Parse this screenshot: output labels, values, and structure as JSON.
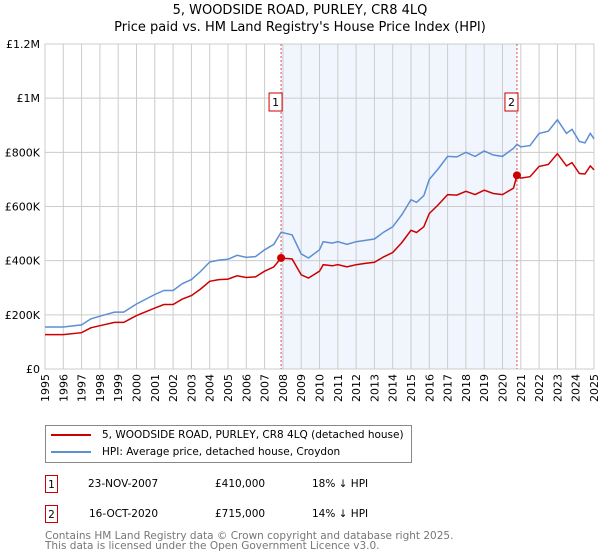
{
  "chart_data": {
    "type": "line",
    "title": "5, WOODSIDE ROAD, PURLEY, CR8 4LQ",
    "subtitle": "Price paid vs. HM Land Registry's House Price Index (HPI)",
    "xlabel": "",
    "ylabel": "",
    "xlim": [
      1995,
      2025
    ],
    "ylim": [
      0,
      1200000
    ],
    "yticks": [
      {
        "v": 0,
        "label": "£0"
      },
      {
        "v": 200000,
        "label": "£200K"
      },
      {
        "v": 400000,
        "label": "£400K"
      },
      {
        "v": 600000,
        "label": "£600K"
      },
      {
        "v": 800000,
        "label": "£800K"
      },
      {
        "v": 1000000,
        "label": "£1M"
      },
      {
        "v": 1200000,
        "label": "£1.2M"
      }
    ],
    "xticks": [
      "1995",
      "1996",
      "1997",
      "1998",
      "1999",
      "2000",
      "2001",
      "2002",
      "2003",
      "2004",
      "2005",
      "2006",
      "2007",
      "2008",
      "2009",
      "2010",
      "2011",
      "2012",
      "2013",
      "2014",
      "2015",
      "2016",
      "2017",
      "2018",
      "2019",
      "2020",
      "2021",
      "2022",
      "2023",
      "2024",
      "2025"
    ],
    "grid": true,
    "shaded_range": [
      2007.9,
      2020.79
    ],
    "series": [
      {
        "name": "5, WOODSIDE ROAD, PURLEY, CR8 4LQ (detached house)",
        "color": "#cc0000",
        "x": [
          1995,
          1996,
          1997,
          1997.5,
          1998,
          1998.8,
          1999.3,
          2000,
          2001,
          2001.5,
          2002,
          2002.5,
          2003,
          2003.5,
          2004,
          2004.5,
          2005,
          2005.5,
          2006,
          2006.5,
          2007,
          2007.5,
          2007.9,
          2008.5,
          2009,
          2009.4,
          2010,
          2010.2,
          2010.7,
          2011,
          2011.5,
          2012,
          2012.5,
          2013,
          2013.5,
          2014,
          2014.5,
          2015,
          2015.3,
          2015.7,
          2016,
          2016.5,
          2017,
          2017.5,
          2018,
          2018.5,
          2019,
          2019.5,
          2020,
          2020.6,
          2020.79,
          2021,
          2021.5,
          2022,
          2022.5,
          2023,
          2023.5,
          2023.8,
          2024.2,
          2024.5,
          2024.8,
          2025
        ],
        "y": [
          127000,
          127000,
          134000,
          152000,
          160000,
          172000,
          172000,
          197000,
          225000,
          238000,
          238000,
          258000,
          271000,
          295000,
          324000,
          330000,
          332000,
          344000,
          338000,
          340000,
          361000,
          377000,
          410000,
          406000,
          348000,
          336000,
          361000,
          385000,
          381000,
          385000,
          377000,
          385000,
          390000,
          394000,
          414000,
          430000,
          467000,
          512000,
          504000,
          525000,
          574000,
          607000,
          644000,
          642000,
          656000,
          644000,
          660000,
          648000,
          644000,
          668000,
          715000,
          705000,
          710000,
          748000,
          755000,
          795000,
          750000,
          762000,
          722000,
          720000,
          750000,
          735000
        ]
      },
      {
        "name": "HPI: Average price, detached house, Croydon",
        "color": "#5b8fd4",
        "x": [
          1995,
          1996,
          1997,
          1997.5,
          1998,
          1998.8,
          1999.3,
          2000,
          2001,
          2001.5,
          2002,
          2002.5,
          2003,
          2003.5,
          2004,
          2004.5,
          2005,
          2005.5,
          2006,
          2006.5,
          2007,
          2007.5,
          2007.9,
          2008.5,
          2009,
          2009.4,
          2010,
          2010.2,
          2010.7,
          2011,
          2011.5,
          2012,
          2012.5,
          2013,
          2013.5,
          2014,
          2014.5,
          2015,
          2015.3,
          2015.7,
          2016,
          2016.5,
          2017,
          2017.5,
          2018,
          2018.5,
          2019,
          2019.5,
          2020,
          2020.6,
          2020.79,
          2021,
          2021.5,
          2022,
          2022.5,
          2023,
          2023.5,
          2023.8,
          2024.2,
          2024.5,
          2024.8,
          2025
        ],
        "y": [
          155000,
          155000,
          163000,
          185000,
          195000,
          210000,
          210000,
          240000,
          275000,
          290000,
          290000,
          315000,
          330000,
          360000,
          395000,
          402000,
          405000,
          420000,
          412000,
          415000,
          440000,
          460000,
          505000,
          495000,
          425000,
          410000,
          440000,
          470000,
          465000,
          470000,
          460000,
          470000,
          475000,
          480000,
          505000,
          525000,
          570000,
          625000,
          615000,
          640000,
          700000,
          740000,
          785000,
          783000,
          800000,
          785000,
          805000,
          790000,
          785000,
          815000,
          830000,
          820000,
          825000,
          870000,
          878000,
          920000,
          870000,
          885000,
          840000,
          835000,
          870000,
          850000
        ]
      }
    ],
    "annotations": [
      {
        "label": "1",
        "x": 2007.9,
        "y": 410000
      },
      {
        "label": "2",
        "x": 2020.79,
        "y": 715000
      }
    ]
  },
  "legend": {
    "property": "5, WOODSIDE ROAD, PURLEY, CR8 4LQ (detached house)",
    "hpi": "HPI: Average price, detached house, Croydon"
  },
  "sales": [
    {
      "num": "1",
      "date": "23-NOV-2007",
      "price": "£410,000",
      "delta": "18% ↓ HPI"
    },
    {
      "num": "2",
      "date": "16-OCT-2020",
      "price": "£715,000",
      "delta": "14% ↓ HPI"
    }
  ],
  "footer": {
    "line1": "Contains HM Land Registry data © Crown copyright and database right 2025.",
    "line2": "This data is licensed under the Open Government Licence v3.0."
  }
}
